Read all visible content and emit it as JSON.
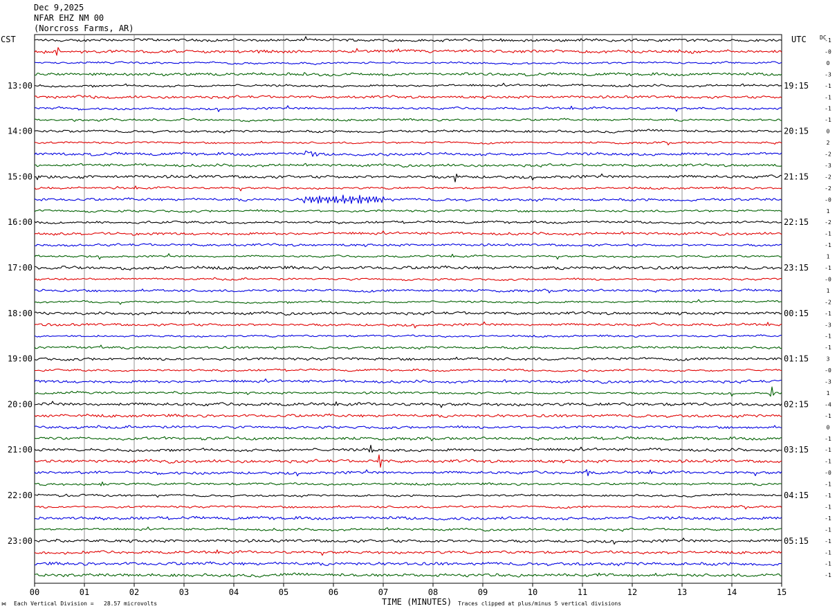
{
  "header": {
    "date": "Dec 9,2025",
    "station": "NFAR EHZ NM 00",
    "location": "(Norcross Farms, AR)"
  },
  "left_tz": "CST",
  "right_tz": "UTC",
  "dc_label": "DC",
  "chart_data": {
    "type": "line",
    "title": "",
    "xlabel": "TIME (MINUTES)",
    "xlim": [
      0,
      15
    ],
    "x_ticks": [
      "00",
      "01",
      "02",
      "03",
      "04",
      "05",
      "06",
      "07",
      "08",
      "09",
      "10",
      "11",
      "12",
      "13",
      "14",
      "15"
    ],
    "trace_count": 48,
    "trace_interval_minutes": 15,
    "trace_colors": [
      "#000000",
      "#e00000",
      "#0000e0",
      "#006000"
    ],
    "left_hour_labels": [
      {
        "trace": 4,
        "text": "13:00"
      },
      {
        "trace": 8,
        "text": "14:00"
      },
      {
        "trace": 12,
        "text": "15:00"
      },
      {
        "trace": 16,
        "text": "16:00"
      },
      {
        "trace": 20,
        "text": "17:00"
      },
      {
        "trace": 24,
        "text": "18:00"
      },
      {
        "trace": 28,
        "text": "19:00"
      },
      {
        "trace": 32,
        "text": "20:00"
      },
      {
        "trace": 36,
        "text": "21:00"
      },
      {
        "trace": 40,
        "text": "22:00"
      },
      {
        "trace": 44,
        "text": "23:00"
      }
    ],
    "right_hour_labels": [
      {
        "trace": 4,
        "text": "19:15"
      },
      {
        "trace": 8,
        "text": "20:15"
      },
      {
        "trace": 12,
        "text": "21:15"
      },
      {
        "trace": 16,
        "text": "22:15"
      },
      {
        "trace": 20,
        "text": "23:15"
      },
      {
        "trace": 24,
        "text": "00:15"
      },
      {
        "trace": 28,
        "text": "01:15"
      },
      {
        "trace": 32,
        "text": "02:15"
      },
      {
        "trace": 36,
        "text": "03:15"
      },
      {
        "trace": 40,
        "text": "04:15"
      },
      {
        "trace": 44,
        "text": "05:15"
      }
    ],
    "dc_offsets": [
      "-1",
      "-0",
      "0",
      "-3",
      "-1",
      "-1",
      "-1",
      "-1",
      "0",
      "2",
      "-2",
      "-3",
      "-2",
      "-2",
      "-0",
      "1",
      "-2",
      "-1",
      "-1",
      "1",
      "-1",
      "-0",
      "1",
      "-2",
      "-1",
      "-3",
      "-1",
      "-1",
      "3",
      "-0",
      "-3",
      "1",
      "-4",
      "-1",
      "0",
      "-1",
      "-1",
      "-1",
      "-0",
      "-1",
      "-1",
      "-1",
      "-1",
      "-1",
      "-1",
      "-1",
      "-1",
      "-1"
    ],
    "notable_events": [
      {
        "trace": 10,
        "minute": 5.55,
        "amplitude": 6,
        "kind": "burst"
      },
      {
        "trace": 14,
        "minute": 5.4,
        "amplitude": 5,
        "kind": "oscillation",
        "duration": 1.6
      },
      {
        "trace": 12,
        "minute": 8.45,
        "amplitude": 7,
        "kind": "spike"
      },
      {
        "trace": 37,
        "minute": 6.93,
        "amplitude": 14,
        "kind": "spike"
      },
      {
        "trace": 36,
        "minute": 6.75,
        "amplitude": 8,
        "kind": "spike"
      },
      {
        "trace": 38,
        "minute": 11.1,
        "amplitude": 6,
        "kind": "spike"
      },
      {
        "trace": 31,
        "minute": 14.8,
        "amplitude": 9,
        "kind": "spike"
      },
      {
        "trace": 1,
        "minute": 0.45,
        "amplitude": 7,
        "kind": "spike"
      },
      {
        "trace": 39,
        "minute": 1.35,
        "amplitude": 4,
        "kind": "spike"
      }
    ]
  },
  "footer": {
    "scale": "Each Vertical Division =   28.57 microvolts",
    "clip": "Traces clipped at plus/minus 5 vertical divisions"
  }
}
